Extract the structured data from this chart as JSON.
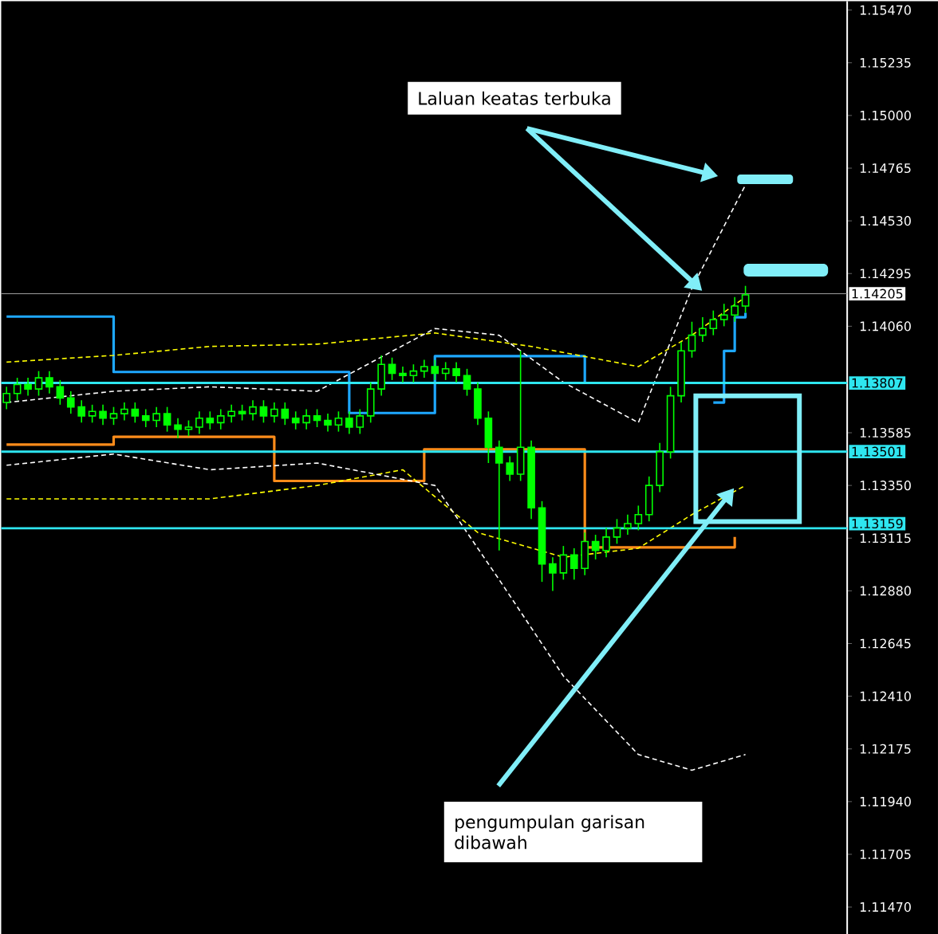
{
  "chart_data": {
    "type": "candlestick",
    "color": "#00ff00",
    "categories": [
      null,
      null,
      null,
      null,
      null,
      null,
      null,
      null,
      null,
      null,
      null,
      null,
      null,
      null,
      null,
      null,
      null,
      null,
      null,
      null,
      null,
      null,
      null,
      null,
      null,
      null,
      null,
      null,
      null,
      null,
      null,
      null,
      null,
      null,
      null,
      null,
      null,
      null,
      null,
      null,
      null,
      null,
      null,
      null,
      null,
      null,
      null,
      null,
      null,
      null,
      null,
      null,
      null,
      null,
      null,
      null,
      null,
      null,
      null,
      null,
      null,
      null,
      null,
      null,
      null,
      null,
      null,
      null,
      null,
      null,
      null,
      null,
      null,
      null,
      null,
      null,
      null,
      null,
      null
    ],
    "ohlc": [
      [
        1.1372,
        1.1379,
        1.1369,
        1.1376
      ],
      [
        1.1376,
        1.1383,
        1.1373,
        1.138
      ],
      [
        1.138,
        1.1383,
        1.1375,
        1.1378
      ],
      [
        1.1378,
        1.1386,
        1.1375,
        1.1383
      ],
      [
        1.1383,
        1.1386,
        1.1376,
        1.1379
      ],
      [
        1.1379,
        1.1382,
        1.1371,
        1.1374
      ],
      [
        1.1374,
        1.1377,
        1.1367,
        1.137
      ],
      [
        1.137,
        1.1373,
        1.1363,
        1.1366
      ],
      [
        1.1366,
        1.1371,
        1.1363,
        1.1368
      ],
      [
        1.1368,
        1.1371,
        1.1362,
        1.1365
      ],
      [
        1.1365,
        1.137,
        1.1362,
        1.1367
      ],
      [
        1.1367,
        1.1372,
        1.1364,
        1.1369
      ],
      [
        1.1369,
        1.1372,
        1.1363,
        1.1366
      ],
      [
        1.1366,
        1.1369,
        1.1361,
        1.1364
      ],
      [
        1.1364,
        1.137,
        1.1361,
        1.1367
      ],
      [
        1.1367,
        1.137,
        1.1359,
        1.1362
      ],
      [
        1.1362,
        1.1365,
        1.1356,
        1.136
      ],
      [
        1.136,
        1.1364,
        1.1357,
        1.1361
      ],
      [
        1.1361,
        1.1368,
        1.1358,
        1.1365
      ],
      [
        1.1365,
        1.1368,
        1.136,
        1.1363
      ],
      [
        1.1363,
        1.1369,
        1.136,
        1.1366
      ],
      [
        1.1366,
        1.1371,
        1.1363,
        1.1368
      ],
      [
        1.1368,
        1.1371,
        1.1364,
        1.1367
      ],
      [
        1.1367,
        1.1373,
        1.1364,
        1.137
      ],
      [
        1.137,
        1.1373,
        1.1363,
        1.1366
      ],
      [
        1.1366,
        1.1372,
        1.1363,
        1.1369
      ],
      [
        1.1369,
        1.1372,
        1.1362,
        1.1365
      ],
      [
        1.1365,
        1.1368,
        1.136,
        1.1363
      ],
      [
        1.1363,
        1.1369,
        1.136,
        1.1366
      ],
      [
        1.1366,
        1.1369,
        1.1361,
        1.1364
      ],
      [
        1.1364,
        1.1367,
        1.1359,
        1.1362
      ],
      [
        1.1362,
        1.1368,
        1.1359,
        1.1365
      ],
      [
        1.1365,
        1.1368,
        1.1358,
        1.1361
      ],
      [
        1.1361,
        1.1369,
        1.1358,
        1.1366
      ],
      [
        1.1366,
        1.1381,
        1.1363,
        1.1378
      ],
      [
        1.1378,
        1.1393,
        1.1375,
        1.1389
      ],
      [
        1.1389,
        1.1392,
        1.1382,
        1.1385
      ],
      [
        1.1385,
        1.1388,
        1.1381,
        1.1384
      ],
      [
        1.1384,
        1.1389,
        1.1381,
        1.1386
      ],
      [
        1.1386,
        1.1391,
        1.1383,
        1.1388
      ],
      [
        1.1388,
        1.1391,
        1.1382,
        1.1385
      ],
      [
        1.1385,
        1.139,
        1.1382,
        1.1387
      ],
      [
        1.1387,
        1.139,
        1.1381,
        1.1384
      ],
      [
        1.1384,
        1.1387,
        1.1375,
        1.1378
      ],
      [
        1.1378,
        1.1381,
        1.1362,
        1.1365
      ],
      [
        1.1365,
        1.1368,
        1.1345,
        1.1352
      ],
      [
        1.1352,
        1.1355,
        1.1306,
        1.1345
      ],
      [
        1.1345,
        1.1348,
        1.1337,
        1.134
      ],
      [
        1.134,
        1.1395,
        1.1337,
        1.1352
      ],
      [
        1.1352,
        1.1355,
        1.132,
        1.1325
      ],
      [
        1.1325,
        1.1328,
        1.1292,
        1.13
      ],
      [
        1.13,
        1.1303,
        1.1288,
        1.1296
      ],
      [
        1.1296,
        1.1308,
        1.1293,
        1.1304
      ],
      [
        1.1304,
        1.1307,
        1.1293,
        1.1298
      ],
      [
        1.1298,
        1.1314,
        1.1295,
        1.131
      ],
      [
        1.131,
        1.1313,
        1.1302,
        1.1306
      ],
      [
        1.1306,
        1.1316,
        1.1303,
        1.1312
      ],
      [
        1.1312,
        1.132,
        1.1309,
        1.1316
      ],
      [
        1.1316,
        1.1322,
        1.1313,
        1.1318
      ],
      [
        1.1318,
        1.1326,
        1.1315,
        1.1322
      ],
      [
        1.1322,
        1.1339,
        1.1319,
        1.1335
      ],
      [
        1.1335,
        1.1354,
        1.1332,
        1.135
      ],
      [
        1.135,
        1.1379,
        1.1347,
        1.1375
      ],
      [
        1.1375,
        1.1399,
        1.1372,
        1.1395
      ],
      [
        1.1395,
        1.1408,
        1.1392,
        1.1402
      ],
      [
        1.1402,
        1.141,
        1.1399,
        1.1405
      ],
      [
        1.1405,
        1.1413,
        1.1402,
        1.1409
      ],
      [
        1.1409,
        1.1416,
        1.1406,
        1.1411
      ],
      [
        1.1411,
        1.1419,
        1.1408,
        1.1415
      ],
      [
        1.1415,
        1.1424,
        1.1412,
        1.142
      ],
      null,
      null,
      null,
      null,
      null,
      null,
      null,
      null,
      null
    ],
    "series": [
      {
        "type": "step",
        "color": "#1ea8ff",
        "line_style": "solid",
        "values": [
          1.14103,
          1.14103,
          1.14103,
          1.14103,
          1.14103,
          1.14103,
          1.14103,
          1.14103,
          1.14103,
          1.14103,
          1.13856,
          1.13856,
          1.13856,
          1.13856,
          1.13856,
          1.13856,
          1.13856,
          1.13856,
          1.13856,
          1.13856,
          1.13856,
          1.13856,
          1.13856,
          1.13856,
          1.13856,
          1.13856,
          1.13856,
          1.13856,
          1.13856,
          1.13856,
          1.13856,
          1.13856,
          1.13673,
          1.13673,
          1.13673,
          1.13673,
          1.13673,
          1.13673,
          1.13673,
          1.13673,
          1.13927,
          1.13927,
          1.13927,
          1.13927,
          1.13927,
          1.13927,
          1.13927,
          1.13927,
          1.13927,
          1.13927,
          1.13927,
          1.13927,
          1.13927,
          1.13927,
          1.1381,
          null,
          null,
          null,
          null,
          null,
          null,
          null,
          null,
          null,
          null,
          null,
          1.1372,
          1.1395,
          1.141,
          1.1412,
          null,
          null,
          null,
          null,
          null,
          null,
          null,
          null,
          null
        ]
      },
      {
        "type": "step",
        "color": "#ff8c1a",
        "line_style": "solid",
        "values": [
          1.13532,
          1.13532,
          1.13532,
          1.13532,
          1.13532,
          1.13532,
          1.13532,
          1.13532,
          1.13532,
          1.13532,
          1.13567,
          1.13567,
          1.13567,
          1.13567,
          1.13567,
          1.13567,
          1.13567,
          1.13567,
          1.13567,
          1.13567,
          1.13567,
          1.13567,
          1.13567,
          1.13567,
          1.13567,
          1.1337,
          1.1337,
          1.1337,
          1.1337,
          1.1337,
          1.1337,
          1.1337,
          1.1337,
          1.1337,
          1.1337,
          1.1337,
          1.1337,
          1.1337,
          1.1337,
          1.13511,
          1.13511,
          1.13511,
          1.13511,
          1.13511,
          1.13511,
          1.13511,
          1.13511,
          1.13511,
          1.13511,
          1.13511,
          1.13511,
          1.13511,
          1.13511,
          1.13511,
          1.13074,
          1.13074,
          1.13074,
          1.13074,
          1.13074,
          1.13074,
          1.13074,
          1.13074,
          1.13074,
          1.13074,
          1.13074,
          1.13074,
          1.13074,
          1.13074,
          1.1312,
          null,
          null,
          null,
          null,
          null,
          null,
          null,
          null,
          null,
          null
        ]
      },
      {
        "type": "line",
        "color": "#ffff00",
        "line_style": "dashed",
        "values": [
          1.139,
          null,
          null,
          null,
          null,
          null,
          null,
          null,
          null,
          null,
          1.1393,
          null,
          null,
          null,
          null,
          null,
          null,
          null,
          null,
          1.1397,
          null,
          null,
          null,
          null,
          null,
          null,
          null,
          null,
          null,
          1.1398,
          null,
          null,
          null,
          null,
          null,
          null,
          null,
          null,
          null,
          null,
          1.1403,
          null,
          null,
          null,
          null,
          null,
          null,
          null,
          null,
          1.1397,
          null,
          null,
          null,
          null,
          null,
          null,
          null,
          null,
          null,
          1.1388,
          null,
          null,
          null,
          null,
          1.1402,
          null,
          null,
          null,
          null,
          1.1419,
          null,
          null,
          null,
          null,
          null,
          null,
          null,
          null,
          null
        ]
      },
      {
        "type": "line",
        "color": "#ffff00",
        "line_style": "dashed",
        "values": [
          1.1329,
          null,
          null,
          null,
          null,
          null,
          null,
          null,
          null,
          null,
          1.1329,
          null,
          null,
          null,
          null,
          null,
          null,
          null,
          null,
          1.1329,
          null,
          null,
          null,
          null,
          null,
          null,
          null,
          null,
          null,
          1.1335,
          null,
          null,
          null,
          null,
          null,
          null,
          null,
          1.1342,
          null,
          null,
          null,
          null,
          null,
          null,
          1.1314,
          null,
          null,
          null,
          null,
          null,
          null,
          null,
          1.1303,
          null,
          null,
          null,
          null,
          null,
          null,
          1.1307,
          null,
          null,
          null,
          null,
          1.1322,
          null,
          null,
          null,
          null,
          1.1335,
          null,
          null,
          null,
          null,
          null,
          null,
          null,
          null,
          null
        ]
      },
      {
        "type": "line",
        "color": "#ffffff",
        "line_style": "dashed",
        "values": [
          1.1372,
          null,
          null,
          null,
          null,
          null,
          null,
          null,
          null,
          null,
          1.1377,
          null,
          null,
          null,
          null,
          null,
          null,
          null,
          null,
          1.1379,
          null,
          null,
          null,
          null,
          null,
          null,
          null,
          null,
          null,
          1.1377,
          null,
          null,
          null,
          null,
          null,
          null,
          null,
          null,
          null,
          null,
          1.1405,
          null,
          null,
          null,
          null,
          null,
          1.1402,
          null,
          null,
          null,
          null,
          null,
          1.1381,
          null,
          null,
          null,
          null,
          null,
          null,
          1.1363,
          null,
          null,
          null,
          null,
          1.1423,
          null,
          null,
          null,
          null,
          1.1469,
          null,
          null,
          null,
          null,
          null,
          null,
          null,
          null,
          null
        ]
      },
      {
        "type": "line",
        "color": "#ffffff",
        "line_style": "dashed",
        "values": [
          1.1344,
          null,
          null,
          null,
          null,
          null,
          null,
          null,
          null,
          null,
          1.1349,
          null,
          null,
          null,
          null,
          null,
          null,
          null,
          null,
          1.1342,
          null,
          null,
          null,
          null,
          null,
          null,
          null,
          null,
          null,
          1.1345,
          null,
          null,
          null,
          null,
          null,
          null,
          null,
          null,
          null,
          null,
          1.1335,
          null,
          null,
          null,
          null,
          null,
          1.1293,
          null,
          null,
          null,
          null,
          null,
          1.125,
          null,
          null,
          null,
          null,
          null,
          null,
          1.1215,
          null,
          null,
          null,
          null,
          1.1208,
          null,
          null,
          null,
          null,
          1.1215,
          null,
          null,
          null,
          null,
          null,
          null,
          null,
          null,
          null
        ]
      }
    ],
    "ref_lines": [
      {
        "axis": "y",
        "value": 1.14205,
        "label": "1.14205",
        "color": "#a0a0a0"
      },
      {
        "axis": "y",
        "value": 1.13807,
        "label": "1.13807",
        "color": "#2ee6f0"
      },
      {
        "axis": "y",
        "value": 1.13501,
        "label": "1.13501",
        "color": "#2ee6f0"
      },
      {
        "axis": "y",
        "value": 1.13159,
        "label": "1.13159",
        "color": "#2ee6f0"
      }
    ],
    "annotations": [
      "Laluan keatas terbuka",
      "pengumpulan garisan dibawah"
    ],
    "ylim": [
      1.1135,
      1.1551
    ],
    "yticks": [
      {
        "value": 1.1147,
        "label": "1.11470"
      },
      {
        "value": 1.11705,
        "label": "1.11705"
      },
      {
        "value": 1.1194,
        "label": "1.11940"
      },
      {
        "value": 1.12175,
        "label": "1.12175"
      },
      {
        "value": 1.1241,
        "label": "1.12410"
      },
      {
        "value": 1.12645,
        "label": "1.12645"
      },
      {
        "value": 1.1288,
        "label": "1.12880"
      },
      {
        "value": 1.13115,
        "label": "1.13115"
      },
      {
        "value": 1.1335,
        "label": "1.13350"
      },
      {
        "value": 1.13585,
        "label": "1.13585"
      },
      {
        "value": 1.1406,
        "label": "1.14060"
      },
      {
        "value": 1.14295,
        "label": "1.14295"
      },
      {
        "value": 1.1453,
        "label": "1.14530"
      },
      {
        "value": 1.14765,
        "label": "1.14765"
      },
      {
        "value": 1.15,
        "label": "1.15000"
      },
      {
        "value": 1.15235,
        "label": "1.15235"
      },
      {
        "value": 1.1547,
        "label": "1.15470"
      }
    ],
    "tick_labels": "y"
  }
}
